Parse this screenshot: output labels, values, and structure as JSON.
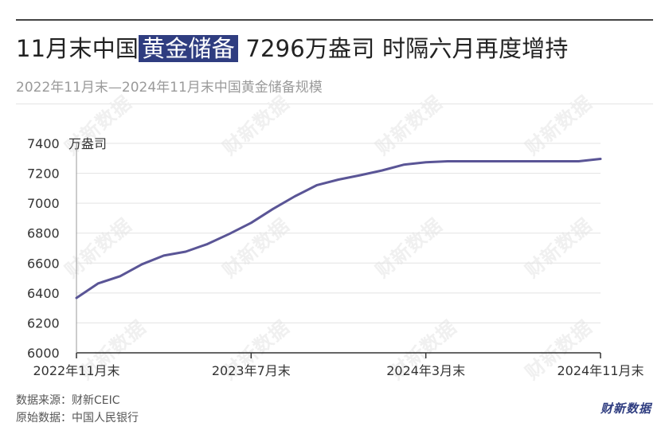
{
  "header": {
    "title_pre": "11月末中国",
    "title_highlight": "黄金储备",
    "title_post": " 7296万盎司 时隔六月再度增持",
    "subtitle": "2022年11月末—2024年11月末中国黄金储备规模"
  },
  "watermark": "财新数据",
  "footer": {
    "source": "数据来源：财新CEIC",
    "original": "原始数据：中国人民银行"
  },
  "brand": "财新数据",
  "colors": {
    "line": "#5a5596",
    "highlight": "#2f3d80",
    "axis": "#333333",
    "grid": "#e3e3e3"
  },
  "chart_data": {
    "type": "line",
    "title": "11月末中国黄金储备 7296万盎司 时隔六月再度增持",
    "subtitle": "2022年11月末—2024年11月末中国黄金储备规模",
    "ylabel": "万盎司",
    "ylim": [
      6000,
      7400
    ],
    "yticks": [
      6000,
      6200,
      6400,
      6600,
      6800,
      7000,
      7200,
      7400
    ],
    "xtick_labels": [
      "2022年11月末",
      "2023年7月末",
      "2024年3月末",
      "2024年11月末"
    ],
    "xtick_index": [
      0,
      8,
      16,
      24
    ],
    "grid": true,
    "x": [
      "2022-11",
      "2022-12",
      "2023-01",
      "2023-02",
      "2023-03",
      "2023-04",
      "2023-05",
      "2023-06",
      "2023-07",
      "2023-08",
      "2023-09",
      "2023-10",
      "2023-11",
      "2023-12",
      "2024-01",
      "2024-02",
      "2024-03",
      "2024-04",
      "2024-05",
      "2024-06",
      "2024-07",
      "2024-08",
      "2024-09",
      "2024-10",
      "2024-11"
    ],
    "series": [
      {
        "values": [
          6367,
          6464,
          6512,
          6592,
          6650,
          6676,
          6727,
          6795,
          6869,
          6962,
          7046,
          7120,
          7158,
          7187,
          7219,
          7258,
          7274,
          7280,
          7280,
          7280,
          7280,
          7280,
          7280,
          7280,
          7296
        ]
      }
    ]
  }
}
